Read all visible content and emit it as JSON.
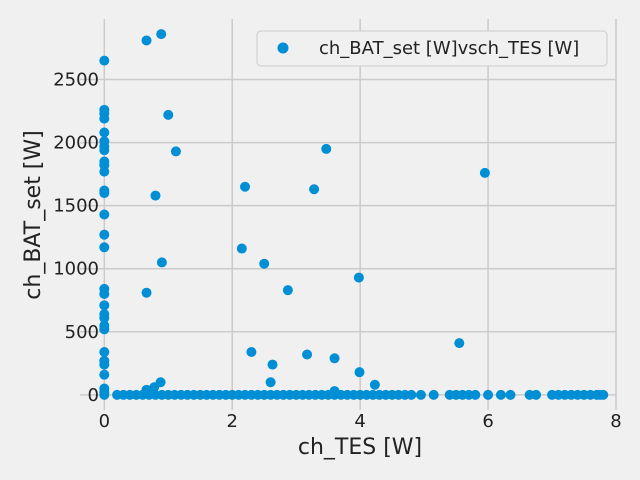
{
  "chart_data": {
    "type": "scatter",
    "title": "",
    "xlabel": "ch_TES [W]",
    "ylabel": "ch_BAT_set [W]",
    "xlim": [
      -0.38,
      8.0
    ],
    "ylim": [
      -120,
      2980
    ],
    "xticks": [
      0,
      2,
      4,
      6,
      8
    ],
    "yticks": [
      0,
      500,
      1000,
      1500,
      2000,
      2500
    ],
    "grid": true,
    "legend": {
      "position": "top-right",
      "entries": [
        "ch_BAT_set [W]vsch_TES [W]"
      ]
    },
    "colors": {
      "marker": "#008fd5",
      "grid": "#cbcbcb",
      "background": "#f0f0f0"
    },
    "series": [
      {
        "name": "ch_BAT_set [W]vsch_TES [W]",
        "points": [
          [
            0,
            2650
          ],
          [
            0,
            2260
          ],
          [
            0,
            2230
          ],
          [
            0,
            2190
          ],
          [
            0,
            2080
          ],
          [
            0,
            2010
          ],
          [
            0,
            1970
          ],
          [
            0,
            1940
          ],
          [
            0,
            1850
          ],
          [
            0,
            1820
          ],
          [
            0,
            1770
          ],
          [
            0,
            1620
          ],
          [
            0,
            1600
          ],
          [
            0,
            1430
          ],
          [
            0,
            1270
          ],
          [
            0,
            1170
          ],
          [
            0,
            840
          ],
          [
            0,
            800
          ],
          [
            0,
            710
          ],
          [
            0,
            640
          ],
          [
            0,
            610
          ],
          [
            0,
            550
          ],
          [
            0,
            520
          ],
          [
            0,
            340
          ],
          [
            0,
            270
          ],
          [
            0,
            240
          ],
          [
            0,
            160
          ],
          [
            0,
            50
          ],
          [
            0,
            20
          ],
          [
            0,
            0
          ],
          [
            0.66,
            2810
          ],
          [
            0.89,
            2860
          ],
          [
            1.0,
            2220
          ],
          [
            1.12,
            1930
          ],
          [
            0.8,
            1580
          ],
          [
            0.9,
            1050
          ],
          [
            0.66,
            810
          ],
          [
            2.2,
            1650
          ],
          [
            2.15,
            1160
          ],
          [
            2.5,
            1040
          ],
          [
            2.87,
            830
          ],
          [
            3.47,
            1950
          ],
          [
            3.28,
            1630
          ],
          [
            3.98,
            930
          ],
          [
            2.3,
            340
          ],
          [
            2.63,
            240
          ],
          [
            2.6,
            100
          ],
          [
            3.17,
            320
          ],
          [
            3.6,
            290
          ],
          [
            3.99,
            180
          ],
          [
            4.23,
            80
          ],
          [
            5.55,
            410
          ],
          [
            5.95,
            1760
          ],
          [
            0.88,
            100
          ],
          [
            0.78,
            60
          ],
          [
            0.66,
            40
          ],
          [
            3.6,
            30
          ],
          [
            0.2,
            0
          ],
          [
            0.3,
            0
          ],
          [
            0.4,
            0
          ],
          [
            0.5,
            0
          ],
          [
            0.6,
            0
          ],
          [
            0.7,
            0
          ],
          [
            0.8,
            0
          ],
          [
            0.9,
            0
          ],
          [
            1.0,
            0
          ],
          [
            1.1,
            0
          ],
          [
            1.2,
            0
          ],
          [
            1.3,
            0
          ],
          [
            1.4,
            0
          ],
          [
            1.5,
            0
          ],
          [
            1.6,
            0
          ],
          [
            1.7,
            0
          ],
          [
            1.8,
            0
          ],
          [
            1.9,
            0
          ],
          [
            2.0,
            0
          ],
          [
            2.1,
            0
          ],
          [
            2.2,
            0
          ],
          [
            2.3,
            0
          ],
          [
            2.4,
            0
          ],
          [
            2.5,
            0
          ],
          [
            2.6,
            0
          ],
          [
            2.7,
            0
          ],
          [
            2.8,
            0
          ],
          [
            2.9,
            0
          ],
          [
            3.0,
            0
          ],
          [
            3.1,
            0
          ],
          [
            3.2,
            0
          ],
          [
            3.3,
            0
          ],
          [
            3.4,
            0
          ],
          [
            3.5,
            0
          ],
          [
            3.6,
            0
          ],
          [
            3.7,
            0
          ],
          [
            3.8,
            0
          ],
          [
            3.9,
            0
          ],
          [
            4.0,
            0
          ],
          [
            4.1,
            0
          ],
          [
            4.2,
            0
          ],
          [
            4.3,
            0
          ],
          [
            4.4,
            0
          ],
          [
            4.5,
            0
          ],
          [
            4.6,
            0
          ],
          [
            4.7,
            0
          ],
          [
            4.8,
            0
          ],
          [
            4.95,
            0
          ],
          [
            5.15,
            0
          ],
          [
            5.4,
            0
          ],
          [
            5.5,
            0
          ],
          [
            5.6,
            0
          ],
          [
            5.7,
            0
          ],
          [
            5.8,
            0
          ],
          [
            6.0,
            0
          ],
          [
            6.2,
            0
          ],
          [
            6.35,
            0
          ],
          [
            6.65,
            0
          ],
          [
            6.75,
            0
          ],
          [
            7.0,
            0
          ],
          [
            7.1,
            0
          ],
          [
            7.2,
            0
          ],
          [
            7.3,
            0
          ],
          [
            7.4,
            0
          ],
          [
            7.5,
            0
          ],
          [
            7.6,
            0
          ],
          [
            7.7,
            0
          ],
          [
            7.75,
            0
          ],
          [
            7.8,
            0
          ]
        ]
      }
    ]
  }
}
